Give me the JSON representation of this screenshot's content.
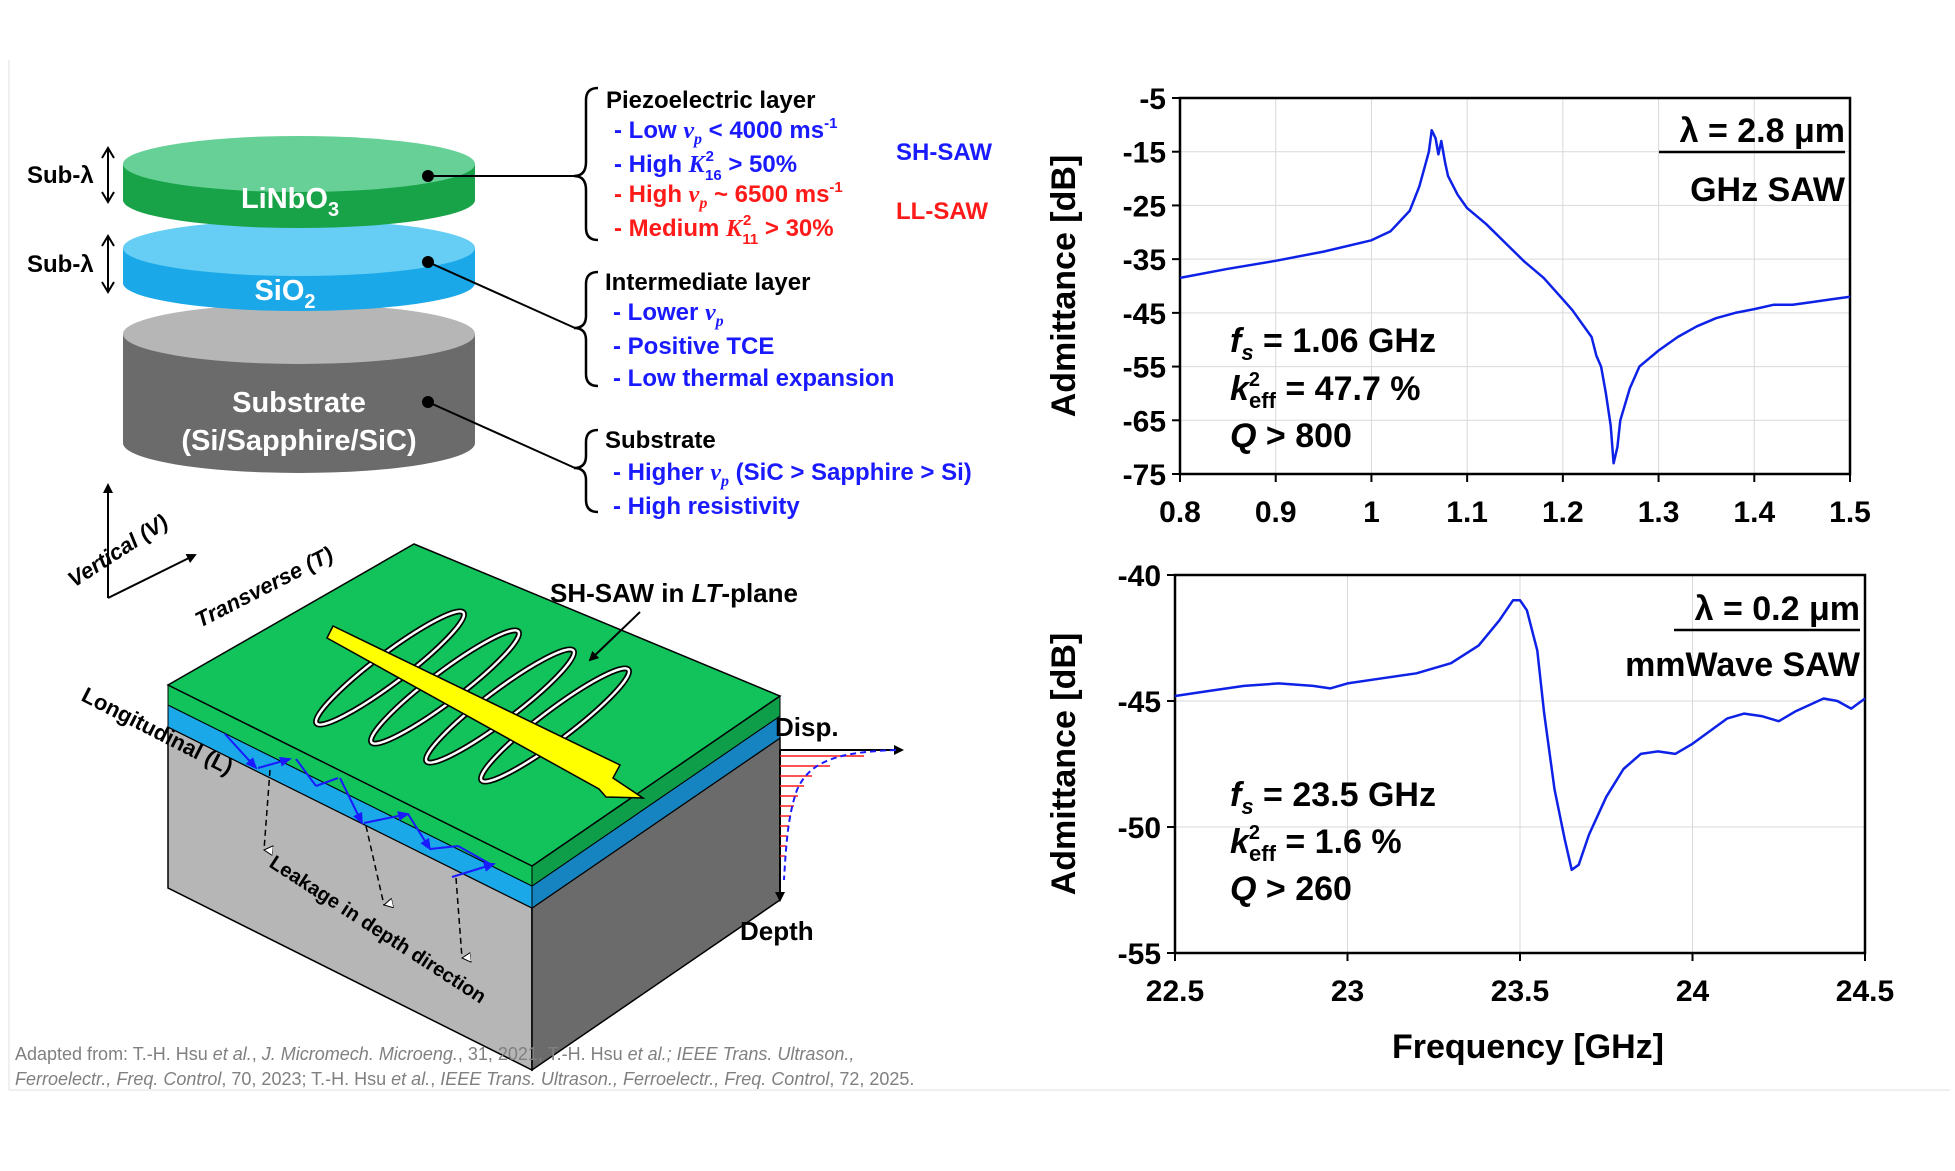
{
  "colors": {
    "blue": "#1a1aff",
    "red": "#ff1a1a",
    "green": "#12c35c",
    "cyan": "#1aa8e8",
    "gray": "#b6b6b6",
    "darkgray": "#6b6b6b",
    "trace": "#0d22e6",
    "arrow": "#ffff00"
  },
  "stack": {
    "sub_lambda_1": "Sub-λ",
    "sub_lambda_2": "Sub-λ",
    "linbo3_main": "LiNbO",
    "linbo3_sub": "3",
    "sio2_main": "SiO",
    "sio2_sub": "2",
    "substrate_1": "Substrate",
    "substrate_2": "(Si/Sapphire/SiC)"
  },
  "piezo": {
    "title": "Piezoelectric layer",
    "l1_pre": "- Low ",
    "l1_var": "v",
    "l1_varsub": "p",
    "l1_post": " < 4000 ms",
    "l1_sup": "-1",
    "l2_pre": "- High ",
    "l2_var": "K",
    "l2_sup": "2",
    "l2_sub": "16",
    "l2_post": " > 50%",
    "l3_pre": "- High ",
    "l3_var": "v",
    "l3_varsub": "p",
    "l3_post": " ~ 6500 ms",
    "l3_sup": "-1",
    "l4_pre": "- Medium ",
    "l4_var": "K",
    "l4_sup": "2",
    "l4_sub": "11",
    "l4_post": " > 30%",
    "shsaw": "SH-SAW",
    "llsaw": "LL-SAW"
  },
  "inter": {
    "title": "Intermediate layer",
    "l1_pre": "- Lower ",
    "l1_var": "v",
    "l1_varsub": "p",
    "l2": "- Positive TCE",
    "l3": "- Low thermal expansion"
  },
  "subs": {
    "title": "Substrate",
    "l1_pre": "- Higher ",
    "l1_var": "v",
    "l1_varsub": "p",
    "l1_post": " (SiC > Sapphire > Si)",
    "l2": "- High resistivity"
  },
  "wave": {
    "vertical": "Vertical (V)",
    "transverse": "Transverse (T)",
    "longitudinal": "Longitudinal (L)",
    "shsaw_pre": "SH-SAW in ",
    "shsaw_it": "LT",
    "shsaw_post": "-plane",
    "leakage": "Leakage in depth direction",
    "disp": "Disp.",
    "depth": "Depth"
  },
  "citation": {
    "line1_a": "Adapted from: T.-H. Hsu ",
    "line1_b": "et al.",
    "line1_c": ", ",
    "line1_d": "J. Micromech. Microeng.",
    "line1_e": ", 31, 2021, T.-H. Hsu ",
    "line1_f": "et al.; IEEE Trans. Ultrason.,",
    "line2_a": "Ferroelectr., Freq. Control",
    "line2_b": ", 70, 2023; T.-H. Hsu ",
    "line2_c": "et al.",
    "line2_d": ", ",
    "line2_e": "IEEE Trans. Ultrason., Ferroelectr., Freq. Control",
    "line2_f": ", 72, 2025."
  },
  "chart_data": [
    {
      "type": "line",
      "ylabel": "Admittance [dB]",
      "xlabel": "",
      "xlim": [
        0.8,
        1.5
      ],
      "ylim": [
        -75,
        -5
      ],
      "xticks": [
        "0.8",
        "0.9",
        "1",
        "1.1",
        "1.2",
        "1.3",
        "1.4",
        "1.5"
      ],
      "yticks": [
        "-5",
        "-15",
        "-25",
        "-35",
        "-45",
        "-55",
        "-65",
        "-75"
      ],
      "grid": true,
      "box_title": "λ = 2.8 μm",
      "box_subtitle": "GHz SAW",
      "ann_fs_var": "f",
      "ann_fs_sub": "s",
      "ann_fs_val": " = 1.06 GHz",
      "ann_k_var": "k",
      "ann_k_sup": "2",
      "ann_k_sub": "eff",
      "ann_k_val": " = 47.7 %",
      "ann_q_var": "Q",
      "ann_q_val": " > 800",
      "series": [
        {
          "values": [
            [
              0.8,
              -38.5
            ],
            [
              0.85,
              -36.8
            ],
            [
              0.9,
              -35.3
            ],
            [
              0.95,
              -33.6
            ],
            [
              1.0,
              -31.5
            ],
            [
              1.02,
              -29.8
            ],
            [
              1.04,
              -26
            ],
            [
              1.05,
              -21.5
            ],
            [
              1.06,
              -15
            ],
            [
              1.063,
              -11
            ],
            [
              1.067,
              -12.5
            ],
            [
              1.07,
              -15.5
            ],
            [
              1.073,
              -13
            ],
            [
              1.077,
              -17
            ],
            [
              1.08,
              -19.5
            ],
            [
              1.09,
              -23
            ],
            [
              1.1,
              -25.5
            ],
            [
              1.12,
              -28.5
            ],
            [
              1.14,
              -32
            ],
            [
              1.16,
              -35.5
            ],
            [
              1.18,
              -38.5
            ],
            [
              1.2,
              -42.5
            ],
            [
              1.21,
              -44.5
            ],
            [
              1.22,
              -47
            ],
            [
              1.23,
              -49.5
            ],
            [
              1.235,
              -53
            ],
            [
              1.24,
              -55
            ],
            [
              1.245,
              -60
            ],
            [
              1.25,
              -66
            ],
            [
              1.253,
              -73
            ],
            [
              1.257,
              -70
            ],
            [
              1.26,
              -65
            ],
            [
              1.265,
              -62
            ],
            [
              1.27,
              -59
            ],
            [
              1.28,
              -55
            ],
            [
              1.3,
              -52
            ],
            [
              1.32,
              -49.5
            ],
            [
              1.34,
              -47.5
            ],
            [
              1.36,
              -46
            ],
            [
              1.38,
              -45
            ],
            [
              1.4,
              -44.3
            ],
            [
              1.42,
              -43.5
            ],
            [
              1.44,
              -43.5
            ],
            [
              1.46,
              -43
            ],
            [
              1.48,
              -42.5
            ],
            [
              1.5,
              -42
            ]
          ]
        }
      ]
    },
    {
      "type": "line",
      "ylabel": "Admittance [dB]",
      "xlabel": "Frequency [GHz]",
      "xlim": [
        22.5,
        24.5
      ],
      "ylim": [
        -55,
        -40
      ],
      "xticks": [
        "22.5",
        "23",
        "23.5",
        "24",
        "24.5"
      ],
      "yticks": [
        "-40",
        "-45",
        "-50",
        "-55"
      ],
      "grid": true,
      "box_title": "λ = 0.2 μm",
      "box_subtitle": "mmWave SAW",
      "ann_fs_var": "f",
      "ann_fs_sub": "s",
      "ann_fs_val": " = 23.5 GHz",
      "ann_k_var": "k",
      "ann_k_sup": "2",
      "ann_k_sub": "eff",
      "ann_k_val": " = 1.6 %",
      "ann_q_var": "Q",
      "ann_q_val": " > 260",
      "series": [
        {
          "values": [
            [
              22.5,
              -44.8
            ],
            [
              22.6,
              -44.6
            ],
            [
              22.7,
              -44.4
            ],
            [
              22.8,
              -44.3
            ],
            [
              22.9,
              -44.4
            ],
            [
              22.95,
              -44.5
            ],
            [
              23.0,
              -44.3
            ],
            [
              23.1,
              -44.1
            ],
            [
              23.2,
              -43.9
            ],
            [
              23.3,
              -43.5
            ],
            [
              23.38,
              -42.8
            ],
            [
              23.44,
              -41.8
            ],
            [
              23.48,
              -41.0
            ],
            [
              23.5,
              -41.0
            ],
            [
              23.52,
              -41.4
            ],
            [
              23.55,
              -43
            ],
            [
              23.57,
              -45.5
            ],
            [
              23.6,
              -48.5
            ],
            [
              23.63,
              -50.5
            ],
            [
              23.65,
              -51.7
            ],
            [
              23.67,
              -51.5
            ],
            [
              23.7,
              -50.3
            ],
            [
              23.75,
              -48.8
            ],
            [
              23.8,
              -47.7
            ],
            [
              23.85,
              -47.1
            ],
            [
              23.9,
              -47.0
            ],
            [
              23.95,
              -47.1
            ],
            [
              24.0,
              -46.7
            ],
            [
              24.1,
              -45.7
            ],
            [
              24.15,
              -45.5
            ],
            [
              24.2,
              -45.6
            ],
            [
              24.25,
              -45.8
            ],
            [
              24.3,
              -45.4
            ],
            [
              24.38,
              -44.9
            ],
            [
              24.42,
              -45.0
            ],
            [
              24.46,
              -45.3
            ],
            [
              24.5,
              -44.9
            ]
          ]
        }
      ]
    }
  ]
}
